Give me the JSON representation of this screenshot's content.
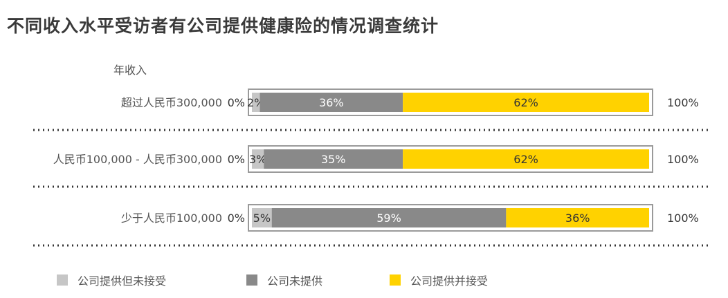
{
  "chart_data": {
    "type": "bar",
    "orientation": "horizontal",
    "stacked": true,
    "title": "不同收入水平受访者有公司提供健康险的情况调查统计",
    "row_header": "年收入",
    "categories": [
      "超过人民币300,000",
      "人民币100,000 - 人民币300,000",
      "少于人民币100,000"
    ],
    "series": [
      {
        "name": "公司提供但未接受",
        "values": [
          2,
          3,
          5
        ],
        "labels": [
          "2%",
          "3%",
          "5%"
        ],
        "color": "#c6c6c6",
        "text_color": "#333333"
      },
      {
        "name": "公司未提供",
        "values": [
          36,
          35,
          59
        ],
        "labels": [
          "36%",
          "35%",
          "59%"
        ],
        "color": "#898989",
        "text_color": "#ffffff"
      },
      {
        "name": "公司提供并接受",
        "values": [
          62,
          62,
          36
        ],
        "labels": [
          "62%",
          "62%",
          "36%"
        ],
        "color": "#ffd200",
        "text_color": "#333333"
      }
    ],
    "axis_start_label": "0%",
    "axis_end_label": "100%",
    "xlim": [
      0,
      100
    ],
    "legend_position": "bottom",
    "grid": false
  }
}
